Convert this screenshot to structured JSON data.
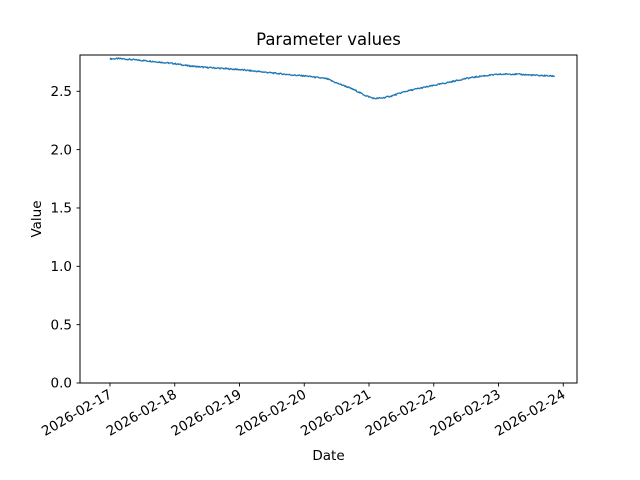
{
  "figure": {
    "background": "#ffffff",
    "spine_color": "#000000",
    "text_color": "#000000"
  },
  "chart_data": {
    "type": "line",
    "title": "Parameter values",
    "xlabel": "Date",
    "ylabel": "Value",
    "grid": false,
    "legend": null,
    "x_tick_labels": [
      "2026-02-17",
      "2026-02-18",
      "2026-02-19",
      "2026-02-20",
      "2026-02-21",
      "2026-02-22",
      "2026-02-23",
      "2026-02-24"
    ],
    "x_tick_days": [
      0,
      1,
      2,
      3,
      4,
      5,
      6,
      7
    ],
    "x_tick_rotation_deg": 30,
    "y_tick_labels": [
      "0.0",
      "0.5",
      "1.0",
      "1.5",
      "2.0",
      "2.5"
    ],
    "y_ticks": [
      0.0,
      0.5,
      1.0,
      1.5,
      2.0,
      2.5
    ],
    "xlim_days": [
      -0.463,
      7.212
    ],
    "ylim": [
      0.0,
      2.811
    ],
    "series": [
      {
        "name": "parameter-values-line",
        "color": "#1f77b4",
        "line_width": 1.3,
        "noise_amplitude": 0.006,
        "points_per_day": 100,
        "anchors_day_value": [
          [
            0.0,
            2.778
          ],
          [
            0.15,
            2.78
          ],
          [
            0.35,
            2.771
          ],
          [
            0.6,
            2.76
          ],
          [
            0.8,
            2.748
          ],
          [
            1.0,
            2.737
          ],
          [
            1.2,
            2.719
          ],
          [
            1.45,
            2.706
          ],
          [
            1.7,
            2.697
          ],
          [
            2.0,
            2.686
          ],
          [
            2.3,
            2.669
          ],
          [
            2.6,
            2.652
          ],
          [
            2.85,
            2.638
          ],
          [
            3.05,
            2.63
          ],
          [
            3.2,
            2.618
          ],
          [
            3.35,
            2.607
          ],
          [
            3.5,
            2.571
          ],
          [
            3.65,
            2.541
          ],
          [
            3.8,
            2.505
          ],
          [
            3.95,
            2.462
          ],
          [
            4.08,
            2.438
          ],
          [
            4.2,
            2.442
          ],
          [
            4.35,
            2.46
          ],
          [
            4.55,
            2.497
          ],
          [
            4.75,
            2.522
          ],
          [
            5.0,
            2.55
          ],
          [
            5.25,
            2.579
          ],
          [
            5.5,
            2.61
          ],
          [
            5.75,
            2.631
          ],
          [
            6.0,
            2.645
          ],
          [
            6.2,
            2.648
          ],
          [
            6.4,
            2.643
          ],
          [
            6.6,
            2.636
          ],
          [
            6.87,
            2.63
          ]
        ]
      }
    ]
  }
}
